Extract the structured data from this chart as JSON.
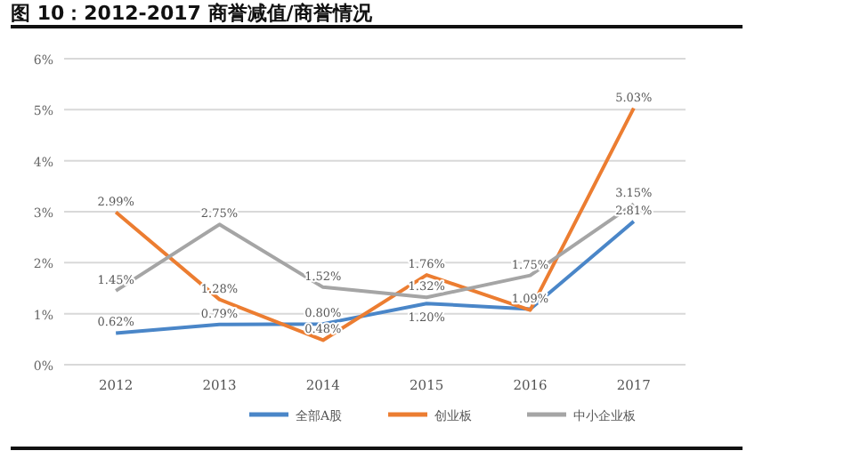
{
  "chart_data": {
    "type": "line",
    "title": "图 10：2012-2017 商誉减值/商誉情况",
    "categories": [
      "2012",
      "2013",
      "2014",
      "2015",
      "2016",
      "2017"
    ],
    "series": [
      {
        "name": "全部A股",
        "color": "#4a86c8",
        "values": [
          0.62,
          0.79,
          0.8,
          1.2,
          1.09,
          2.81
        ],
        "value_labels": [
          "0.62%",
          "0.79%",
          "0.80%",
          "1.20%",
          "1.09%",
          "2.81%"
        ]
      },
      {
        "name": "创业板",
        "color": "#ec7d31",
        "values": [
          2.99,
          1.28,
          0.48,
          1.76,
          1.07,
          5.03
        ],
        "value_labels": [
          "2.99%",
          "1.28%",
          "0.48%",
          "1.76%",
          null,
          "5.03%"
        ]
      },
      {
        "name": "中小企业板",
        "color": "#a5a5a5",
        "values": [
          1.45,
          2.75,
          1.52,
          1.32,
          1.75,
          3.15
        ],
        "value_labels": [
          "1.45%",
          "2.75%",
          "1.52%",
          "1.32%",
          "1.75%",
          "3.15%"
        ]
      }
    ],
    "ylim": [
      0,
      6
    ],
    "yticks": [
      {
        "value": 0,
        "label": "0%"
      },
      {
        "value": 1,
        "label": "1%"
      },
      {
        "value": 2,
        "label": "2%"
      },
      {
        "value": 3,
        "label": "3%"
      },
      {
        "value": 4,
        "label": "4%"
      },
      {
        "value": 5,
        "label": "5%"
      },
      {
        "value": 6,
        "label": "6%"
      }
    ],
    "grid": "y",
    "legend": "bottom",
    "marker": "none",
    "line_style": "solid"
  }
}
